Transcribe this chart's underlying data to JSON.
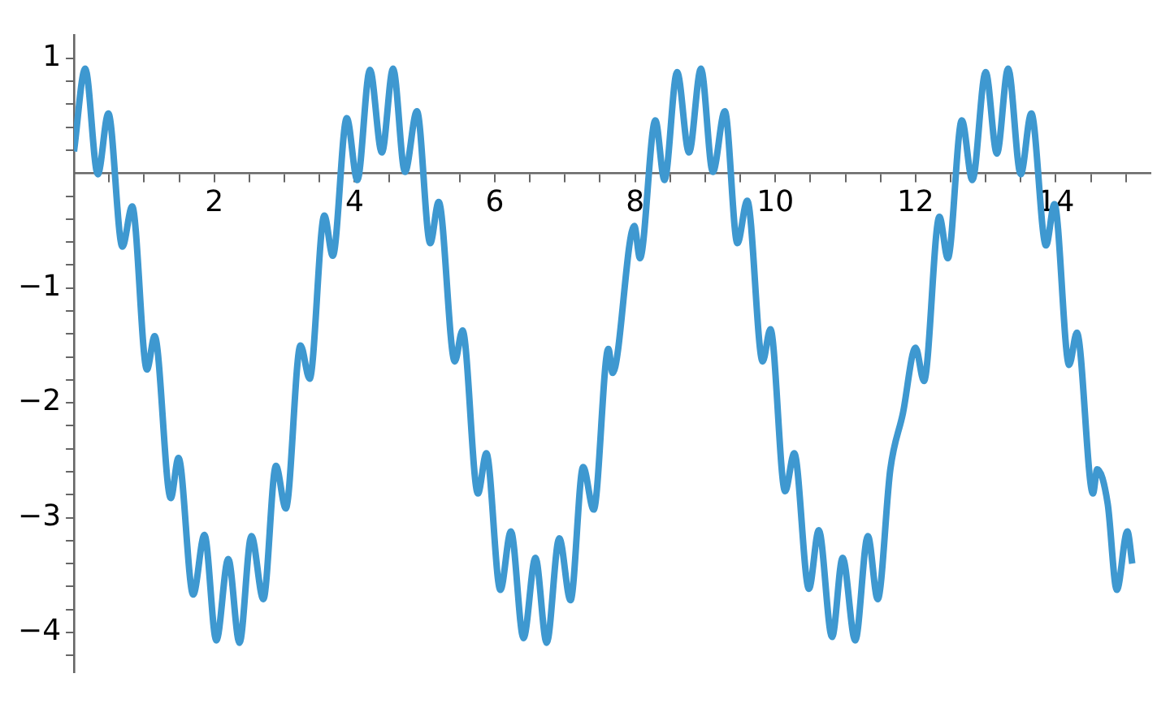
{
  "chart_data": {
    "type": "line",
    "xlim": [
      0,
      15.35
    ],
    "ylim": [
      -4.35,
      1.2
    ],
    "xticks": [
      {
        "value": 0.5,
        "label": null
      },
      {
        "value": 1,
        "label": null
      },
      {
        "value": 1.5,
        "label": null
      },
      2,
      {
        "value": 2.5,
        "label": null
      },
      {
        "value": 3,
        "label": null
      },
      {
        "value": 3.5,
        "label": null
      },
      4,
      {
        "value": 4.5,
        "label": null
      },
      {
        "value": 5,
        "label": null
      },
      {
        "value": 5.5,
        "label": null
      },
      6,
      {
        "value": 6.5,
        "label": null
      },
      {
        "value": 7,
        "label": null
      },
      {
        "value": 7.5,
        "label": null
      },
      8,
      {
        "value": 8.5,
        "label": null
      },
      {
        "value": 9,
        "label": null
      },
      {
        "value": 9.5,
        "label": null
      },
      10,
      {
        "value": 10.5,
        "label": null
      },
      {
        "value": 11,
        "label": null
      },
      {
        "value": 11.5,
        "label": null
      },
      12,
      {
        "value": 12.5,
        "label": null
      },
      {
        "value": 13,
        "label": null
      },
      {
        "value": 13.5,
        "label": null
      },
      14,
      {
        "value": 14.5,
        "label": null
      },
      {
        "value": 15,
        "label": null
      }
    ],
    "yticks": [
      {
        "value": -4.2,
        "label": null
      },
      {
        "value": -4,
        "label": "−4"
      },
      {
        "value": -3.8,
        "label": null
      },
      {
        "value": -3.6,
        "label": null
      },
      {
        "value": -3.4,
        "label": null
      },
      {
        "value": -3.2,
        "label": null
      },
      {
        "value": -3,
        "label": "−3"
      },
      {
        "value": -2.8,
        "label": null
      },
      {
        "value": -2.6,
        "label": null
      },
      {
        "value": -2.4,
        "label": null
      },
      {
        "value": -2.2,
        "label": null
      },
      {
        "value": -2,
        "label": "−2"
      },
      {
        "value": -1.8,
        "label": null
      },
      {
        "value": -1.6,
        "label": null
      },
      {
        "value": -1.4,
        "label": null
      },
      {
        "value": -1.2,
        "label": null
      },
      {
        "value": -1,
        "label": "−1"
      },
      {
        "value": -0.8,
        "label": null
      },
      {
        "value": -0.6,
        "label": null
      },
      {
        "value": -0.4,
        "label": null
      },
      {
        "value": -0.2,
        "label": null
      },
      {
        "value": 0.2,
        "label": null
      },
      {
        "value": 0.4,
        "label": null
      },
      {
        "value": 0.6,
        "label": null
      },
      {
        "value": 0.8,
        "label": null
      },
      1
    ],
    "series": [
      {
        "color": "#3e98d0",
        "x": [
          0,
          0.16,
          0.34,
          0.49,
          0.69,
          0.83,
          1.04,
          1.15,
          1.38,
          1.49,
          1.7,
          1.86,
          2.03,
          2.2,
          2.36,
          2.53,
          2.7,
          2.88,
          3.02,
          3.23,
          3.36,
          3.57,
          3.69,
          3.89,
          4.04,
          4.22,
          4.39,
          4.55,
          4.72,
          4.89,
          5.08,
          5.2,
          5.43,
          5.54,
          5.76,
          5.88,
          6.08,
          6.23,
          6.41,
          6.58,
          6.74,
          6.92,
          7.08,
          7.26,
          7.41,
          7.62,
          7.68,
          7.99,
          8.07,
          8.29,
          8.42,
          8.6,
          8.77,
          8.94,
          9.11,
          9.28,
          9.46,
          9.6,
          9.82,
          9.93,
          10.14,
          10.27,
          10.48,
          10.62,
          10.81,
          10.96,
          11.14,
          11.32,
          11.46,
          11.64,
          11.82,
          12,
          12.12,
          12.34,
          12.46,
          12.66,
          12.81,
          13,
          13.16,
          13.32,
          13.5,
          13.65,
          13.86,
          13.98,
          14.19,
          14.3,
          14.53,
          14.59,
          14.74,
          14.87,
          15.02,
          15.09
        ],
        "values": [
          0.19,
          0.91,
          -0.01,
          0.52,
          -0.64,
          -0.29,
          -1.71,
          -1.42,
          -2.83,
          -2.48,
          -3.67,
          -3.15,
          -4.07,
          -3.36,
          -4.09,
          -3.16,
          -3.71,
          -2.55,
          -2.92,
          -1.5,
          -1.79,
          -0.37,
          -0.72,
          0.48,
          -0.06,
          0.9,
          0.18,
          0.91,
          0.01,
          0.54,
          -0.61,
          -0.25,
          -1.64,
          -1.37,
          -2.79,
          -2.44,
          -3.63,
          -3.12,
          -4.05,
          -3.35,
          -4.09,
          -3.18,
          -3.72,
          -2.56,
          -2.93,
          -1.53,
          -1.74,
          -0.46,
          -0.74,
          0.46,
          -0.06,
          0.88,
          0.18,
          0.91,
          0.01,
          0.54,
          -0.61,
          -0.24,
          -1.64,
          -1.36,
          -2.77,
          -2.44,
          -3.62,
          -3.11,
          -4.04,
          -3.35,
          -4.07,
          -3.16,
          -3.71,
          -2.58,
          -2.09,
          -1.52,
          -1.81,
          -0.38,
          -0.74,
          0.46,
          -0.06,
          0.88,
          0.17,
          0.91,
          -0.01,
          0.52,
          -0.63,
          -0.27,
          -1.67,
          -1.39,
          -2.79,
          -2.58,
          -2.88,
          -3.63,
          -3.12,
          -3.4
        ]
      }
    ]
  }
}
